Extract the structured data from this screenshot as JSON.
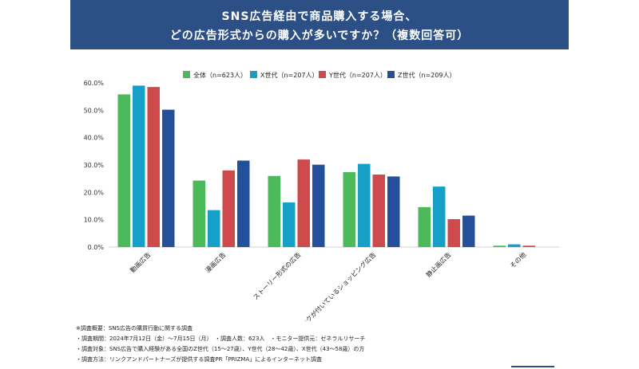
{
  "header": {
    "title_line1": "SNS広告経由で商品購入する場合、",
    "title_line2": "どの広告形式からの購入が多いですか？（複数回答可）"
  },
  "chart_data": {
    "type": "bar",
    "categories": [
      "動画広告",
      "漫画広告",
      "ストーリー形式の広告",
      "商品購入リンクが付いているショッピング広告",
      "静止画広告",
      "その他"
    ],
    "series": [
      {
        "name": "全体（n=623人）",
        "color": "#4cba5b",
        "values": [
          55.8,
          24.3,
          26.0,
          27.4,
          14.6,
          0.5
        ]
      },
      {
        "name": "X世代（n=207人）",
        "color": "#16a0c8",
        "values": [
          59.0,
          13.5,
          16.3,
          30.4,
          22.1,
          1.0
        ]
      },
      {
        "name": "Y世代（n=207人）",
        "color": "#cf4a4c",
        "values": [
          58.5,
          28.0,
          32.0,
          26.5,
          10.2,
          0.5
        ]
      },
      {
        "name": "Z世代（n=209人）",
        "color": "#234f9b",
        "values": [
          50.2,
          31.6,
          30.1,
          25.8,
          11.5,
          0.0
        ]
      }
    ],
    "yticks": [
      "0.0%",
      "10.0%",
      "20.0%",
      "30.0%",
      "40.0%",
      "50.0%",
      "60.0%"
    ],
    "ylim": [
      0,
      60
    ],
    "grid": false,
    "legend": "top-center"
  },
  "footer": {
    "line1": "※調査概要：SNS広告の購買行動に関する調査",
    "line2": "・調査期間：2024年7月12日（金）〜7月15日（月）　・調査人数：623人　・モニター提供元：ゼネラルリサーチ",
    "line3": "・調査対象：SNS広告で購入経験がある全国のZ世代（15〜27歳）、Y世代（28〜42歳）、X世代（43〜58歳）の方",
    "line4": "・調査方法：リンクアンドパートナーズが提供する調査PR「PRIZMA」によるインターネット調査"
  }
}
